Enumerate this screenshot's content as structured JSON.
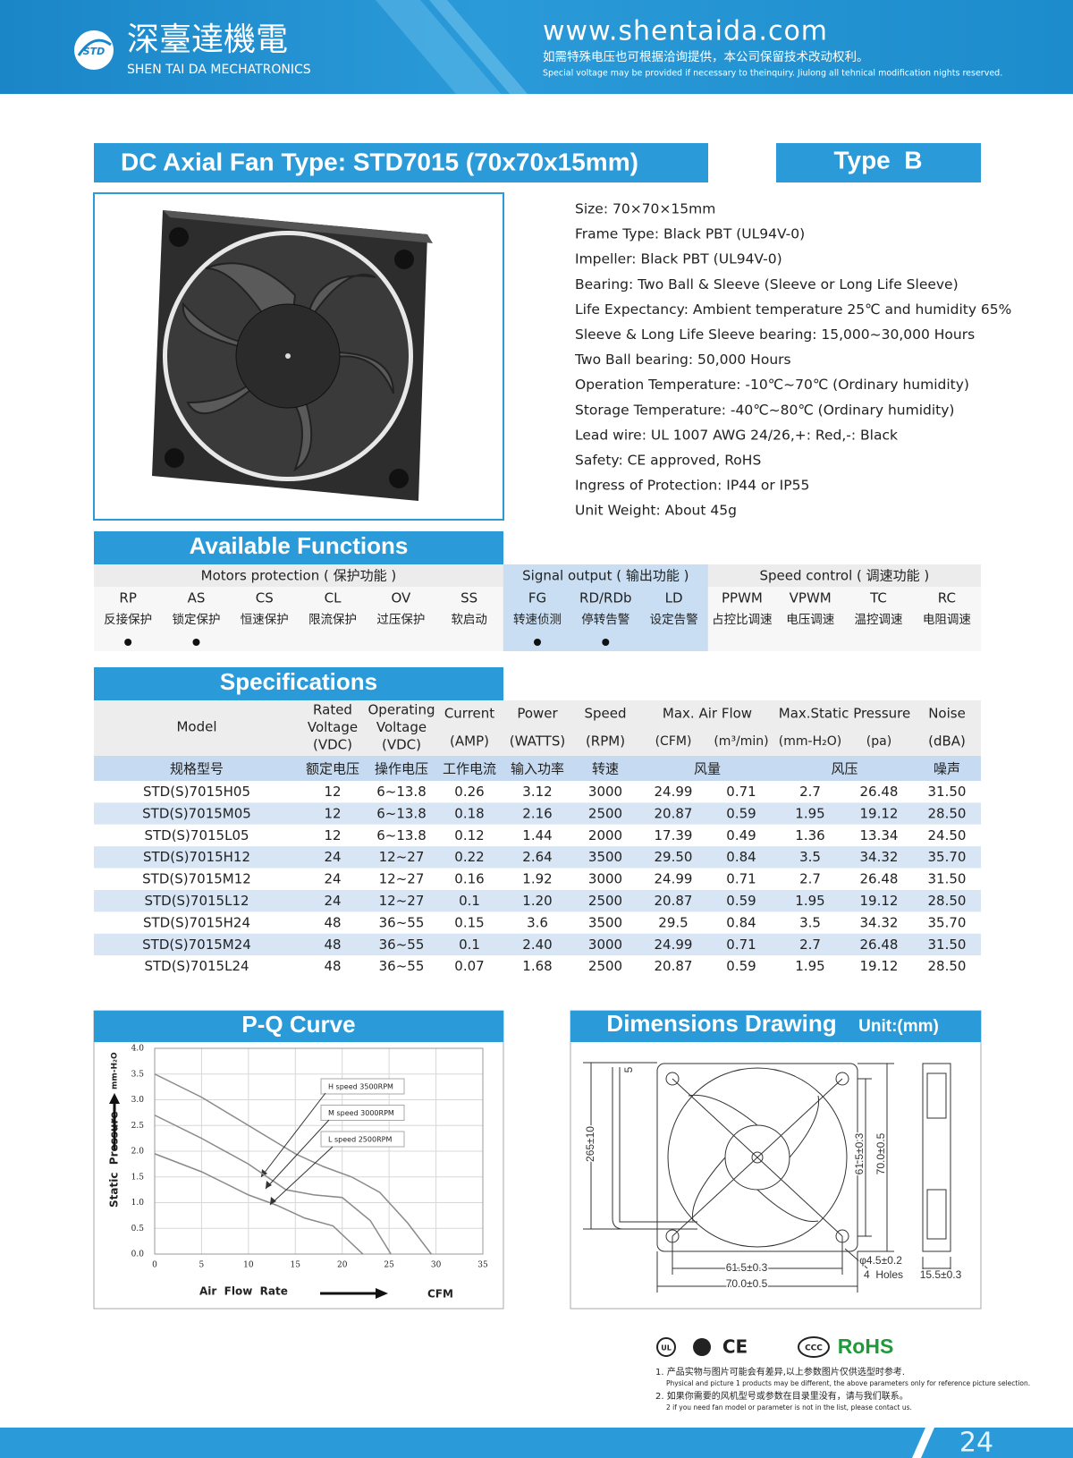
{
  "header": {
    "logo": "STD",
    "company_cn": "深臺達機電",
    "company_en": "SHEN TAI DA MECHATRONICS",
    "website": "www.shentaida.com",
    "notice_cn": "如需特殊电压也可根据洽询提供，本公司保留技术改动权利。",
    "notice_en": "Special voltage may be provided if necessary to theinquiry. Jiulong all tehnical modification nights reserved."
  },
  "title": "DC Axial Fan  Type: STD7015 (70x70x15mm)",
  "type_label": "Type  B",
  "features": [
    "Size: 70×70×15mm",
    "Frame Type: Black PBT (UL94V-0)",
    "Impeller: Black PBT (UL94V-0)",
    "Bearing: Two Ball & Sleeve (Sleeve or Long Life Sleeve)",
    "Life Expectancy: Ambient temperature 25℃ and humidity 65%",
    "Sleeve & Long Life Sleeve bearing: 15,000~30,000 Hours",
    "Two Ball bearing: 50,000 Hours",
    "Operation Temperature: -10℃~70℃ (Ordinary humidity)",
    "Storage Temperature: -40℃~80℃ (Ordinary humidity)",
    "Lead wire: UL 1007 AWG 24/26,+: Red,-: Black",
    "Safety: CE approved, RoHS",
    "Ingress of Protection: IP44 or IP55",
    "Unit Weight: About 45g"
  ],
  "functions": {
    "title": "Available Functions",
    "groups": [
      {
        "title": "Motors protection ( 保护功能 )",
        "items": [
          {
            "code": "RP",
            "name": "反接保护",
            "available": true
          },
          {
            "code": "AS",
            "name": "锁定保护",
            "available": true
          },
          {
            "code": "CS",
            "name": "恒速保护",
            "available": false
          },
          {
            "code": "CL",
            "name": "限流保护",
            "available": false
          },
          {
            "code": "OV",
            "name": "过压保护",
            "available": false
          },
          {
            "code": "SS",
            "name": "软启动",
            "available": false
          }
        ]
      },
      {
        "title": "Signal output ( 输出功能 )",
        "items": [
          {
            "code": "FG",
            "name": "转速侦测",
            "available": true
          },
          {
            "code": "RD/RDb",
            "name": "停转告警",
            "available": true
          },
          {
            "code": "LD",
            "name": "设定告警",
            "available": false
          }
        ]
      },
      {
        "title": "Speed control ( 调速功能 )",
        "items": [
          {
            "code": "PPWM",
            "name": "占控比调速",
            "available": false
          },
          {
            "code": "VPWM",
            "name": "电压调速",
            "available": false
          },
          {
            "code": "TC",
            "name": "温控调速",
            "available": false
          },
          {
            "code": "RC",
            "name": "电阻调速",
            "available": false
          }
        ]
      }
    ]
  },
  "specifications": {
    "title": "Specifications",
    "header_groups": [
      "Max. Air Flow",
      "Max.Static Pressure"
    ],
    "header_cells": [
      [
        "Model"
      ],
      [
        "Rated",
        "Voltage",
        "(VDC)"
      ],
      [
        "Operating",
        "Voltage",
        "(VDC)"
      ],
      [
        "Current",
        "(AMP)"
      ],
      [
        "Power",
        "(WATTS)"
      ],
      [
        "Speed",
        "(RPM)"
      ],
      [
        "(CFM)"
      ],
      [
        "(m³/min)"
      ],
      [
        "(mm-H₂O)"
      ],
      [
        "(pa)"
      ],
      [
        "Noise",
        "(dBA)"
      ]
    ],
    "header_cn": [
      "规格型号",
      "额定电压",
      "操作电压",
      "工作电流",
      "输入功率",
      "转速",
      "风量",
      "风压",
      "噪声"
    ],
    "rows": [
      [
        "STD(S)7015H05",
        "12",
        "6~13.8",
        "0.26",
        "3.12",
        "3000",
        "24.99",
        "0.71",
        "2.7",
        "26.48",
        "31.50"
      ],
      [
        "STD(S)7015M05",
        "12",
        "6~13.8",
        "0.18",
        "2.16",
        "2500",
        "20.87",
        "0.59",
        "1.95",
        "19.12",
        "28.50"
      ],
      [
        "STD(S)7015L05",
        "12",
        "6~13.8",
        "0.12",
        "1.44",
        "2000",
        "17.39",
        "0.49",
        "1.36",
        "13.34",
        "24.50"
      ],
      [
        "STD(S)7015H12",
        "24",
        "12~27",
        "0.22",
        "2.64",
        "3500",
        "29.50",
        "0.84",
        "3.5",
        "34.32",
        "35.70"
      ],
      [
        "STD(S)7015M12",
        "24",
        "12~27",
        "0.16",
        "1.92",
        "3000",
        "24.99",
        "0.71",
        "2.7",
        "26.48",
        "31.50"
      ],
      [
        "STD(S)7015L12",
        "24",
        "12~27",
        "0.1",
        "1.20",
        "2500",
        "20.87",
        "0.59",
        "1.95",
        "19.12",
        "28.50"
      ],
      [
        "STD(S)7015H24",
        "48",
        "36~55",
        "0.15",
        "3.6",
        "3500",
        "29.5",
        "0.84",
        "3.5",
        "34.32",
        "35.70"
      ],
      [
        "STD(S)7015M24",
        "48",
        "36~55",
        "0.1",
        "2.40",
        "3000",
        "24.99",
        "0.71",
        "2.7",
        "26.48",
        "31.50"
      ],
      [
        "STD(S)7015L24",
        "48",
        "36~55",
        "0.07",
        "1.68",
        "2500",
        "20.87",
        "0.59",
        "1.95",
        "19.12",
        "28.50"
      ]
    ]
  },
  "chart_data": {
    "type": "line",
    "title": "P-Q Curve",
    "xlabel": "Air  Flow  Rate",
    "xunit": "CFM",
    "ylabel": "Static  Pressure",
    "yunit": "mm-H₂O",
    "xlim": [
      0,
      35
    ],
    "ylim": [
      0,
      4
    ],
    "xticks": [
      0,
      5,
      10,
      15,
      20,
      25,
      30,
      35
    ],
    "yticks": [
      {
        "value": 0,
        "label": "0.0"
      },
      0.5,
      {
        "value": 1,
        "label": "1.0"
      },
      1.5,
      {
        "value": 2,
        "label": "2.0"
      },
      2.5,
      {
        "value": 3,
        "label": "3.0"
      },
      3.5,
      {
        "value": 4,
        "label": "4.0"
      }
    ],
    "grid": true,
    "series": [
      {
        "name": "H speed 3500RPM",
        "color": "#8a8a8a",
        "x": [
          0,
          5,
          10,
          15,
          18,
          21,
          24,
          27,
          29.5
        ],
        "values": [
          3.5,
          3.05,
          2.5,
          1.95,
          1.7,
          1.5,
          1.2,
          0.6,
          0
        ]
      },
      {
        "name": "M speed 3000RPM",
        "color": "#8a8a8a",
        "x": [
          0,
          5,
          10,
          14,
          17,
          20,
          23,
          25.2
        ],
        "values": [
          2.7,
          2.25,
          1.75,
          1.25,
          1.15,
          1.1,
          0.65,
          0
        ]
      },
      {
        "name": "L speed 2500RPM",
        "color": "#8a8a8a",
        "x": [
          0,
          5,
          10,
          13,
          16,
          19,
          22.2
        ],
        "values": [
          1.95,
          1.6,
          1.15,
          0.95,
          0.7,
          0.55,
          0
        ]
      }
    ]
  },
  "dimensions": {
    "title": "Dimensions Drawing",
    "unit": "Unit:(mm)",
    "labels": [
      "265±10",
      "5",
      "61.5±0.3",
      "70.0±0.5",
      "61.5±0.3",
      "70.0±0.5",
      "φ4.5±0.2",
      "4  Holes",
      "15.5±0.3"
    ]
  },
  "certifications": [
    "UL",
    "CE",
    "CCC",
    "RoHS"
  ],
  "notes": [
    "1. 产品实物与图片可能会有差异,以上参数图片仅供选型时参考.",
    "Physical and picture 1 products may be different, the above parameters only for reference picture selection.",
    "2. 如果你需要的风机型号或参数在目录里没有，请与我们联系。",
    "2 if you need fan model or parameter is not in the list, please contact us."
  ],
  "page_number": "24"
}
